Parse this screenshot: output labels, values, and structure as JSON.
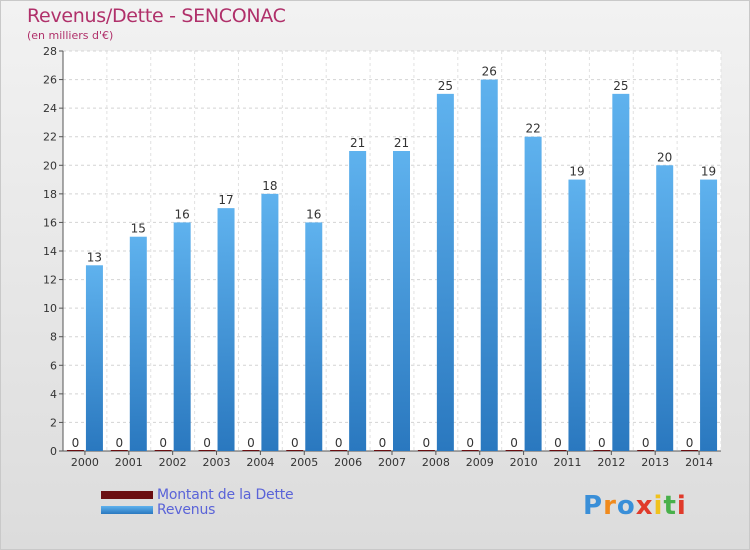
{
  "chart_data": {
    "type": "bar",
    "title": "Revenus/Dette - SENCONAC",
    "subtitle": "(en milliers d'€)",
    "categories": [
      "2000",
      "2001",
      "2002",
      "2003",
      "2004",
      "2005",
      "2006",
      "2007",
      "2008",
      "2009",
      "2010",
      "2011",
      "2012",
      "2013",
      "2014"
    ],
    "series": [
      {
        "name": "Montant de la Dette",
        "values": [
          0,
          0,
          0,
          0,
          0,
          0,
          0,
          0,
          0,
          0,
          0,
          0,
          0,
          0,
          0
        ],
        "color": "#6b0f12"
      },
      {
        "name": "Revenus",
        "values": [
          13,
          15,
          16,
          17,
          18,
          16,
          21,
          21,
          25,
          26,
          22,
          19,
          25,
          20,
          19
        ],
        "color": "#4aa0e2"
      }
    ],
    "yticks": [
      0,
      2,
      4,
      6,
      8,
      10,
      12,
      14,
      16,
      18,
      20,
      22,
      24,
      26,
      28
    ],
    "ylim": [
      0,
      28
    ],
    "grid": true,
    "legend": "bottom-left"
  },
  "logo": {
    "text": "Proxiti",
    "colors": [
      "#3a8fd8",
      "#f08a1c",
      "#3a8fd8",
      "#e03a2a",
      "#f0c21c",
      "#48b04a",
      "#e03a2a"
    ]
  }
}
